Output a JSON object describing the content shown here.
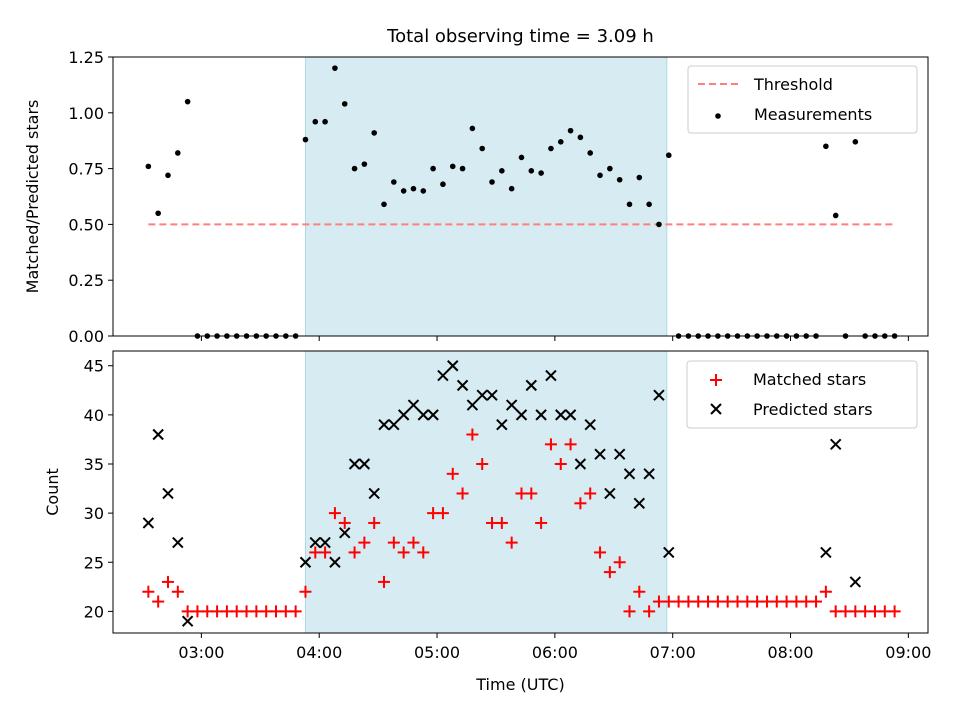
{
  "chart_data": [
    {
      "type": "scatter",
      "title": "Total observing time = 3.09 h",
      "xlabel": "",
      "ylabel": "Matched/Predicted stars",
      "xlim": [
        "02:15",
        "09:10"
      ],
      "ylim": [
        0,
        1.25
      ],
      "yticks": [
        "0.00",
        "0.25",
        "0.50",
        "0.75",
        "1.00",
        "1.25"
      ],
      "shaded_interval": [
        "03:53",
        "06:57"
      ],
      "legend": {
        "placement": "top-right",
        "threshold_label": "Threshold",
        "measurements_label": "Measurements"
      },
      "threshold": {
        "name": "Threshold",
        "value": 0.5,
        "x_range": [
          "02:33",
          "08:52"
        ],
        "color": "#ff7f7f"
      },
      "series": [
        {
          "name": "Measurements",
          "color": "#000000",
          "points": [
            [
              "02:33",
              0.76
            ],
            [
              "02:38",
              0.55
            ],
            [
              "02:43",
              0.72
            ],
            [
              "02:48",
              0.82
            ],
            [
              "02:53",
              1.05
            ],
            [
              "02:58",
              0.0
            ],
            [
              "03:03",
              0.0
            ],
            [
              "03:08",
              0.0
            ],
            [
              "03:13",
              0.0
            ],
            [
              "03:18",
              0.0
            ],
            [
              "03:23",
              0.0
            ],
            [
              "03:28",
              0.0
            ],
            [
              "03:33",
              0.0
            ],
            [
              "03:38",
              0.0
            ],
            [
              "03:43",
              0.0
            ],
            [
              "03:48",
              0.0
            ],
            [
              "03:53",
              0.88
            ],
            [
              "03:58",
              0.96
            ],
            [
              "04:03",
              0.96
            ],
            [
              "04:08",
              1.2
            ],
            [
              "04:13",
              1.04
            ],
            [
              "04:18",
              0.75
            ],
            [
              "04:23",
              0.77
            ],
            [
              "04:28",
              0.91
            ],
            [
              "04:33",
              0.59
            ],
            [
              "04:38",
              0.69
            ],
            [
              "04:43",
              0.65
            ],
            [
              "04:48",
              0.66
            ],
            [
              "04:53",
              0.65
            ],
            [
              "04:58",
              0.75
            ],
            [
              "05:03",
              0.68
            ],
            [
              "05:08",
              0.76
            ],
            [
              "05:13",
              0.75
            ],
            [
              "05:18",
              0.93
            ],
            [
              "05:23",
              0.84
            ],
            [
              "05:28",
              0.69
            ],
            [
              "05:33",
              0.74
            ],
            [
              "05:38",
              0.66
            ],
            [
              "05:43",
              0.8
            ],
            [
              "05:48",
              0.74
            ],
            [
              "05:53",
              0.73
            ],
            [
              "05:58",
              0.84
            ],
            [
              "06:03",
              0.87
            ],
            [
              "06:08",
              0.92
            ],
            [
              "06:13",
              0.89
            ],
            [
              "06:18",
              0.82
            ],
            [
              "06:23",
              0.72
            ],
            [
              "06:28",
              0.75
            ],
            [
              "06:33",
              0.7
            ],
            [
              "06:38",
              0.59
            ],
            [
              "06:43",
              0.71
            ],
            [
              "06:48",
              0.59
            ],
            [
              "06:53",
              0.5
            ],
            [
              "06:58",
              0.81
            ],
            [
              "07:03",
              0.0
            ],
            [
              "07:08",
              0.0
            ],
            [
              "07:13",
              0.0
            ],
            [
              "07:18",
              0.0
            ],
            [
              "07:23",
              0.0
            ],
            [
              "07:28",
              0.0
            ],
            [
              "07:33",
              0.0
            ],
            [
              "07:38",
              0.0
            ],
            [
              "07:43",
              0.0
            ],
            [
              "07:48",
              0.0
            ],
            [
              "07:53",
              0.0
            ],
            [
              "07:58",
              0.0
            ],
            [
              "08:03",
              0.0
            ],
            [
              "08:08",
              0.0
            ],
            [
              "08:13",
              0.0
            ],
            [
              "08:18",
              0.85
            ],
            [
              "08:23",
              0.54
            ],
            [
              "08:28",
              0.0
            ],
            [
              "08:33",
              0.87
            ],
            [
              "08:38",
              0.0
            ],
            [
              "08:43",
              0.0
            ],
            [
              "08:48",
              0.0
            ],
            [
              "08:53",
              0.0
            ]
          ]
        }
      ]
    },
    {
      "type": "scatter",
      "title": "",
      "xlabel": "Time (UTC)",
      "ylabel": "Count",
      "xlim": [
        "02:15",
        "09:10"
      ],
      "ylim": [
        17.8,
        46.5
      ],
      "yticks": [
        "20",
        "25",
        "30",
        "35",
        "40",
        "45"
      ],
      "xticks": [
        "03:00",
        "04:00",
        "05:00",
        "06:00",
        "07:00",
        "08:00",
        "09:00"
      ],
      "shaded_interval": [
        "03:53",
        "06:57"
      ],
      "legend": {
        "placement": "top-right",
        "matched_label": "Matched stars",
        "predicted_label": "Predicted stars"
      },
      "series": [
        {
          "name": "Matched stars",
          "marker": "+",
          "color": "#ff0000",
          "points": [
            [
              "02:33",
              22
            ],
            [
              "02:38",
              21
            ],
            [
              "02:43",
              23
            ],
            [
              "02:48",
              22
            ],
            [
              "02:53",
              20
            ],
            [
              "02:58",
              20
            ],
            [
              "03:03",
              20
            ],
            [
              "03:08",
              20
            ],
            [
              "03:13",
              20
            ],
            [
              "03:18",
              20
            ],
            [
              "03:23",
              20
            ],
            [
              "03:28",
              20
            ],
            [
              "03:33",
              20
            ],
            [
              "03:38",
              20
            ],
            [
              "03:43",
              20
            ],
            [
              "03:48",
              20
            ],
            [
              "03:53",
              22
            ],
            [
              "03:58",
              26
            ],
            [
              "04:03",
              26
            ],
            [
              "04:08",
              30
            ],
            [
              "04:13",
              29
            ],
            [
              "04:18",
              26
            ],
            [
              "04:23",
              27
            ],
            [
              "04:28",
              29
            ],
            [
              "04:33",
              23
            ],
            [
              "04:38",
              27
            ],
            [
              "04:43",
              26
            ],
            [
              "04:48",
              27
            ],
            [
              "04:53",
              26
            ],
            [
              "04:58",
              30
            ],
            [
              "05:03",
              30
            ],
            [
              "05:08",
              34
            ],
            [
              "05:13",
              32
            ],
            [
              "05:18",
              38
            ],
            [
              "05:23",
              35
            ],
            [
              "05:28",
              29
            ],
            [
              "05:33",
              29
            ],
            [
              "05:38",
              27
            ],
            [
              "05:43",
              32
            ],
            [
              "05:48",
              32
            ],
            [
              "05:53",
              29
            ],
            [
              "05:58",
              37
            ],
            [
              "06:03",
              35
            ],
            [
              "06:08",
              37
            ],
            [
              "06:13",
              31
            ],
            [
              "06:18",
              32
            ],
            [
              "06:23",
              26
            ],
            [
              "06:28",
              24
            ],
            [
              "06:33",
              25
            ],
            [
              "06:38",
              20
            ],
            [
              "06:43",
              22
            ],
            [
              "06:48",
              20
            ],
            [
              "06:53",
              21
            ],
            [
              "06:58",
              21
            ],
            [
              "07:03",
              21
            ],
            [
              "07:08",
              21
            ],
            [
              "07:13",
              21
            ],
            [
              "07:18",
              21
            ],
            [
              "07:23",
              21
            ],
            [
              "07:28",
              21
            ],
            [
              "07:33",
              21
            ],
            [
              "07:38",
              21
            ],
            [
              "07:43",
              21
            ],
            [
              "07:48",
              21
            ],
            [
              "07:53",
              21
            ],
            [
              "07:58",
              21
            ],
            [
              "08:03",
              21
            ],
            [
              "08:08",
              21
            ],
            [
              "08:13",
              21
            ],
            [
              "08:18",
              22
            ],
            [
              "08:23",
              20
            ],
            [
              "08:28",
              20
            ],
            [
              "08:33",
              20
            ],
            [
              "08:38",
              20
            ],
            [
              "08:43",
              20
            ],
            [
              "08:48",
              20
            ],
            [
              "08:53",
              20
            ]
          ]
        },
        {
          "name": "Predicted stars",
          "marker": "x",
          "color": "#000000",
          "points": [
            [
              "02:33",
              29
            ],
            [
              "02:38",
              38
            ],
            [
              "02:43",
              32
            ],
            [
              "02:48",
              27
            ],
            [
              "02:53",
              19
            ],
            [
              "03:53",
              25
            ],
            [
              "03:58",
              27
            ],
            [
              "04:03",
              27
            ],
            [
              "04:08",
              25
            ],
            [
              "04:13",
              28
            ],
            [
              "04:18",
              35
            ],
            [
              "04:23",
              35
            ],
            [
              "04:28",
              32
            ],
            [
              "04:33",
              39
            ],
            [
              "04:38",
              39
            ],
            [
              "04:43",
              40
            ],
            [
              "04:48",
              41
            ],
            [
              "04:53",
              40
            ],
            [
              "04:58",
              40
            ],
            [
              "05:03",
              44
            ],
            [
              "05:08",
              45
            ],
            [
              "05:13",
              43
            ],
            [
              "05:18",
              41
            ],
            [
              "05:23",
              42
            ],
            [
              "05:28",
              42
            ],
            [
              "05:33",
              39
            ],
            [
              "05:38",
              41
            ],
            [
              "05:43",
              40
            ],
            [
              "05:48",
              43
            ],
            [
              "05:53",
              40
            ],
            [
              "05:58",
              44
            ],
            [
              "06:03",
              40
            ],
            [
              "06:08",
              40
            ],
            [
              "06:13",
              35
            ],
            [
              "06:18",
              39
            ],
            [
              "06:23",
              36
            ],
            [
              "06:28",
              32
            ],
            [
              "06:33",
              36
            ],
            [
              "06:38",
              34
            ],
            [
              "06:43",
              31
            ],
            [
              "06:48",
              34
            ],
            [
              "06:53",
              42
            ],
            [
              "06:58",
              26
            ],
            [
              "08:18",
              26
            ],
            [
              "08:23",
              37
            ],
            [
              "08:33",
              23
            ]
          ]
        }
      ]
    }
  ]
}
